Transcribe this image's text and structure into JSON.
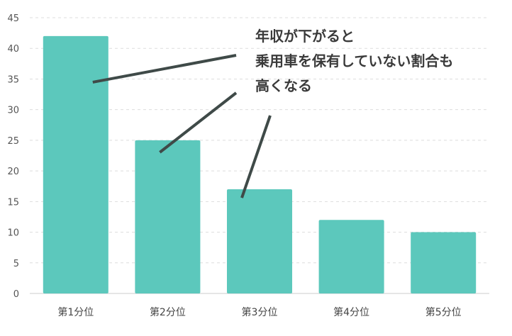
{
  "chart_data": {
    "type": "bar",
    "categories": [
      "第1分位",
      "第2分位",
      "第3分位",
      "第4分位",
      "第5分位"
    ],
    "values": [
      42,
      25,
      17,
      12,
      10
    ],
    "ylim": [
      0,
      45
    ],
    "yticks": [
      0,
      5,
      10,
      15,
      20,
      25,
      30,
      35,
      40,
      45
    ],
    "grid": true,
    "annotation": {
      "lines": [
        "年収が下がると",
        "乗用車を保有していない割合も",
        "高くなる"
      ],
      "pointers_to_categories": [
        "第1分位",
        "第2分位",
        "第3分位"
      ]
    },
    "colors": {
      "bar": "#5cc8bc",
      "pointer": "#3f4a48",
      "grid": "#dddddd"
    }
  }
}
